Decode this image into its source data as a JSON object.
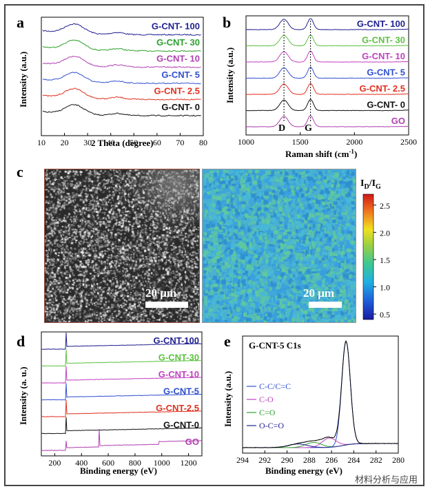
{
  "panels": {
    "a": "a",
    "b": "b",
    "c": "c",
    "d": "d",
    "e": "e"
  },
  "chart_data": [
    {
      "panel": "a",
      "type": "line",
      "xlabel": "2 Theta (degree)",
      "ylabel": "Intensity (a.u.)",
      "xlim": [
        10,
        80
      ],
      "xticks": [
        10,
        20,
        30,
        40,
        50,
        60,
        70,
        80
      ],
      "series": [
        {
          "name": "G-CNT- 100",
          "color": "#1f1f8f",
          "peak_x": 24,
          "baseline_offset": 6
        },
        {
          "name": "G-CNT- 30",
          "color": "#2ca02c",
          "peak_x": 24,
          "baseline_offset": 5
        },
        {
          "name": "G-CNT- 10",
          "color": "#b040b0",
          "peak_x": 24,
          "baseline_offset": 4
        },
        {
          "name": "G-CNT- 5",
          "color": "#3050d0",
          "peak_x": 24,
          "baseline_offset": 3
        },
        {
          "name": "G-CNT- 2.5",
          "color": "#e03020",
          "peak_x": 24,
          "baseline_offset": 2
        },
        {
          "name": "G-CNT- 0",
          "color": "#111111",
          "peak_x": 24,
          "baseline_offset": 1
        }
      ]
    },
    {
      "panel": "b",
      "type": "line",
      "xlabel": "Raman shift (cm",
      "xlabel_sup": "-1",
      "xlabel_end": ")",
      "ylabel": "Intensity (a.u.)",
      "xlim": [
        1000,
        2500
      ],
      "xticks": [
        1000,
        1500,
        2000,
        2500
      ],
      "annotations": [
        "D",
        "G"
      ],
      "D_x": 1350,
      "G_x": 1595,
      "series": [
        {
          "name": "G-CNT- 100",
          "color": "#1f1f8f"
        },
        {
          "name": "G-CNT- 30",
          "color": "#5cc040"
        },
        {
          "name": "G-CNT- 10",
          "color": "#c040c0"
        },
        {
          "name": "G-CNT- 5",
          "color": "#3050d0"
        },
        {
          "name": "G-CNT- 2.5",
          "color": "#e03020"
        },
        {
          "name": "G-CNT- 0",
          "color": "#111111"
        },
        {
          "name": "GO",
          "color": "#b040b0"
        }
      ]
    },
    {
      "panel": "c",
      "type": "heatmap",
      "colorbar_label": "I",
      "colorbar_sub1": "D",
      "colorbar_mid": "/I",
      "colorbar_sub2": "G",
      "colorbar_ticks": [
        2.5,
        2.0,
        1.5,
        1.0,
        0.5
      ],
      "clim": [
        0.4,
        2.7
      ],
      "scalebar_left": "20 μm",
      "scalebar_right": "20 μm"
    },
    {
      "panel": "d",
      "type": "line",
      "xlabel": "Binding energy (eV)",
      "ylabel": "Intensity (a. u.)",
      "xlim": [
        100,
        1300
      ],
      "xticks": [
        200,
        400,
        600,
        800,
        1000,
        1200
      ],
      "series": [
        {
          "name": "G-CNT-100",
          "color": "#1f1f8f"
        },
        {
          "name": "G-CNT-30",
          "color": "#5cc040"
        },
        {
          "name": "G-CNT-10",
          "color": "#c040c0"
        },
        {
          "name": "G-CNT-5",
          "color": "#3050d0"
        },
        {
          "name": "G-CNT-2.5",
          "color": "#e03020"
        },
        {
          "name": "G-CNT-0",
          "color": "#111111"
        },
        {
          "name": "GO",
          "color": "#b040b0"
        }
      ]
    },
    {
      "panel": "e",
      "type": "line",
      "title": "G-CNT-5  C1s",
      "xlabel": "Binding energy (eV)",
      "ylabel": "Intensity (a.u.)",
      "xlim": [
        294,
        280
      ],
      "xticks": [
        294,
        292,
        290,
        288,
        286,
        284,
        282,
        280
      ],
      "legend": [
        {
          "name": "C-C/C=C",
          "color": "#3050d0"
        },
        {
          "name": "C-O",
          "color": "#c040c0"
        },
        {
          "name": "C=O",
          "color": "#2ca02c"
        },
        {
          "name": "O-C=O",
          "color": "#1f1f8f"
        }
      ],
      "peaks": [
        {
          "name": "C-C/C=C",
          "center": 284.7,
          "height": 1.0
        },
        {
          "name": "C-O",
          "center": 286.2,
          "height": 0.09
        },
        {
          "name": "C=O",
          "center": 287.6,
          "height": 0.05
        },
        {
          "name": "O-C=O",
          "center": 289.0,
          "height": 0.035
        }
      ]
    }
  ],
  "watermark": "材料分析与应用"
}
